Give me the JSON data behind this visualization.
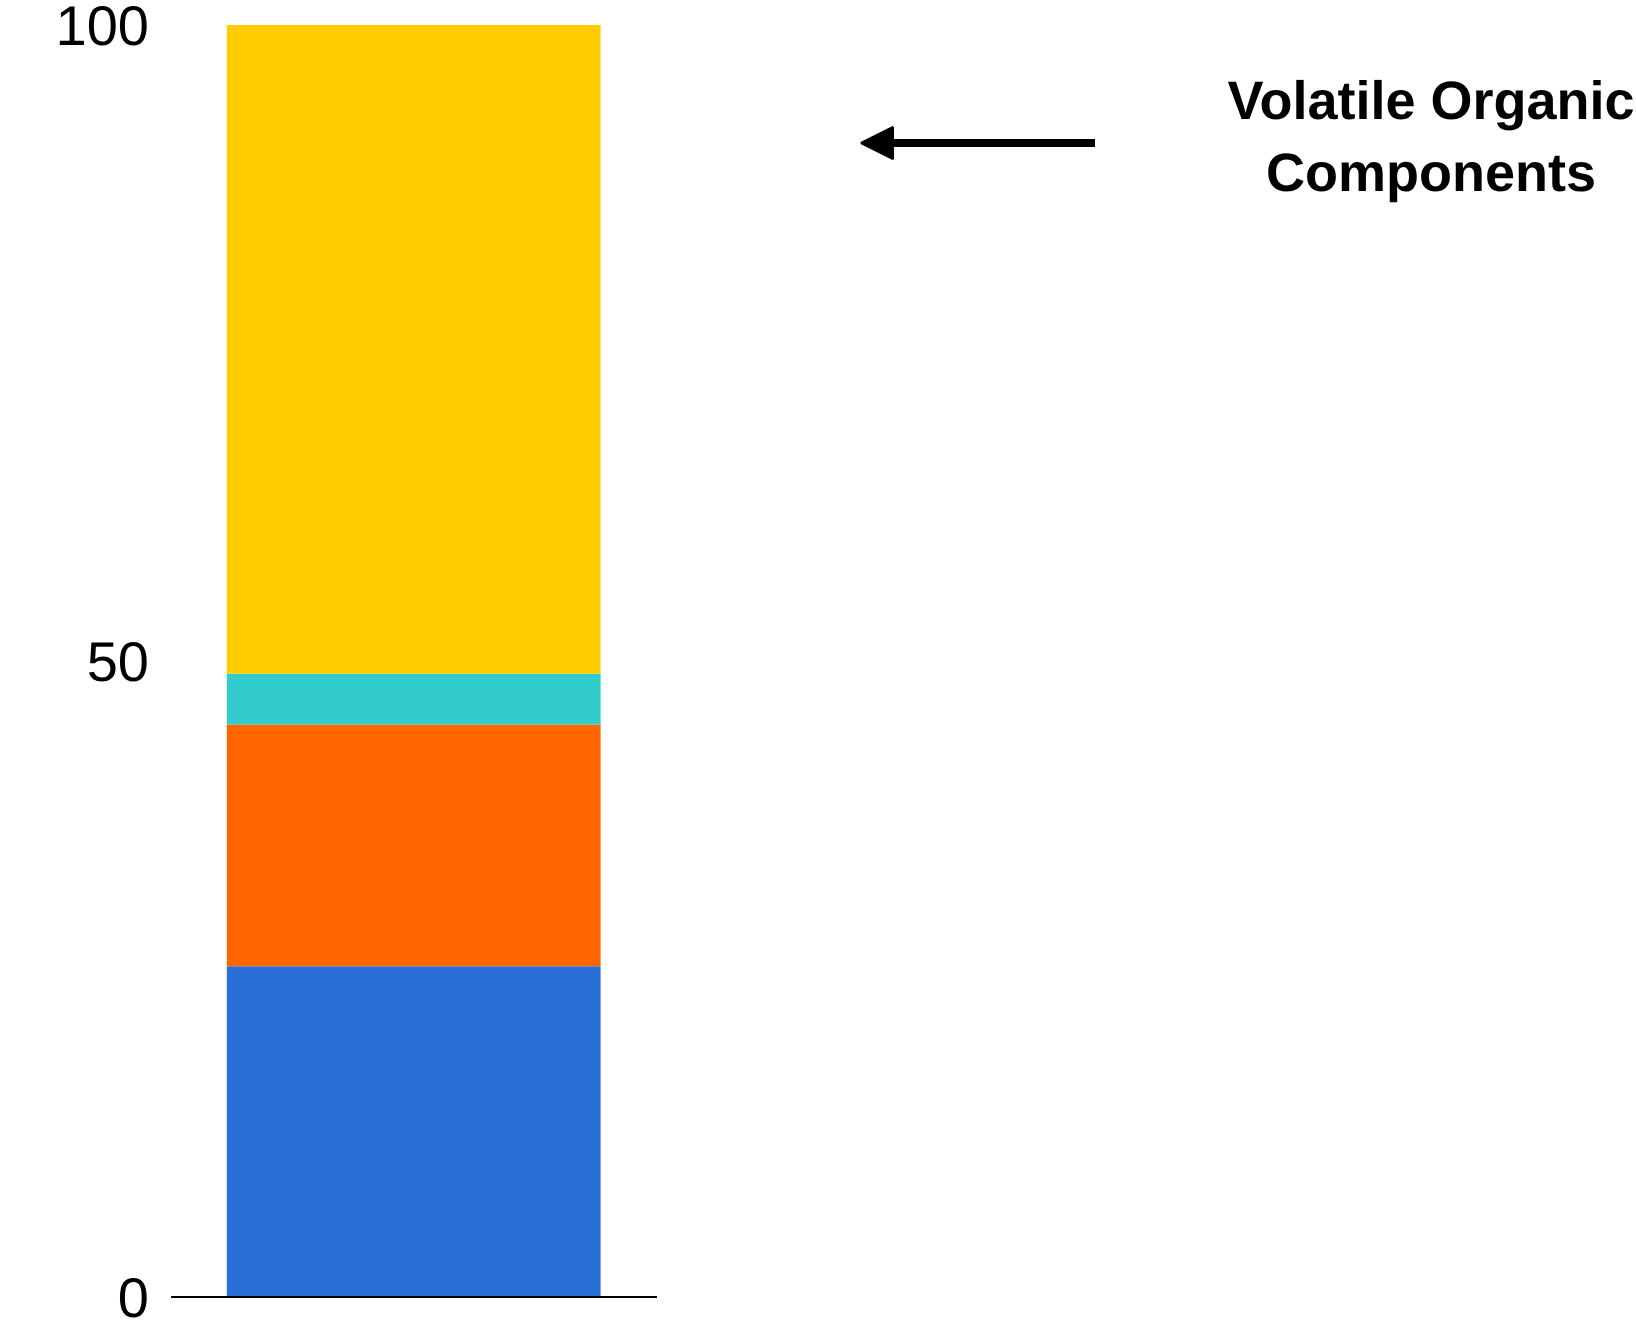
{
  "chart_data": {
    "type": "bar",
    "stacked": true,
    "categories": [
      null
    ],
    "series": [
      {
        "color": "#2a6fd8",
        "values": [
          26
        ]
      },
      {
        "color": "#ff6600",
        "values": [
          19
        ]
      },
      {
        "color": "#33cccc",
        "values": [
          4
        ]
      },
      {
        "color": "#ffcc00",
        "values": [
          51
        ]
      }
    ],
    "ylim": [
      0,
      100
    ],
    "yticks": [
      0,
      50,
      100
    ],
    "grid": false,
    "annotations": [
      "Volatile Organic Components"
    ]
  }
}
